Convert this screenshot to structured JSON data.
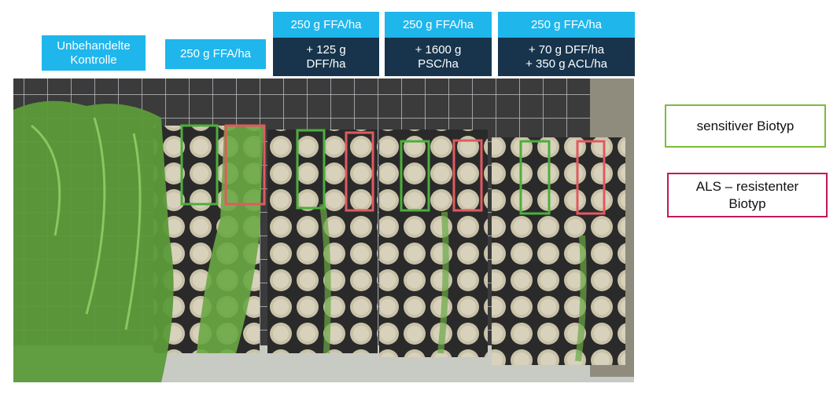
{
  "treatments": [
    {
      "lines": [
        "Unbehandelte",
        "Kontrolle"
      ]
    },
    {
      "lines": [
        "250 g FFA/ha"
      ]
    },
    {
      "lines": [
        "250 g FFA/ha"
      ],
      "addition": [
        "+ 125 g",
        "DFF/ha"
      ]
    },
    {
      "lines": [
        "250 g FFA/ha"
      ],
      "addition": [
        "+ 1600 g",
        "PSC/ha"
      ]
    },
    {
      "lines": [
        "250 g FFA/ha"
      ],
      "addition": [
        "+ 70 g DFF/ha",
        "+ 350 g ACL/ha"
      ]
    }
  ],
  "legend": [
    {
      "lines": [
        "sensitiver Biotyp"
      ]
    },
    {
      "lines": [
        "ALS – resistenter",
        "Biotyp"
      ]
    }
  ]
}
